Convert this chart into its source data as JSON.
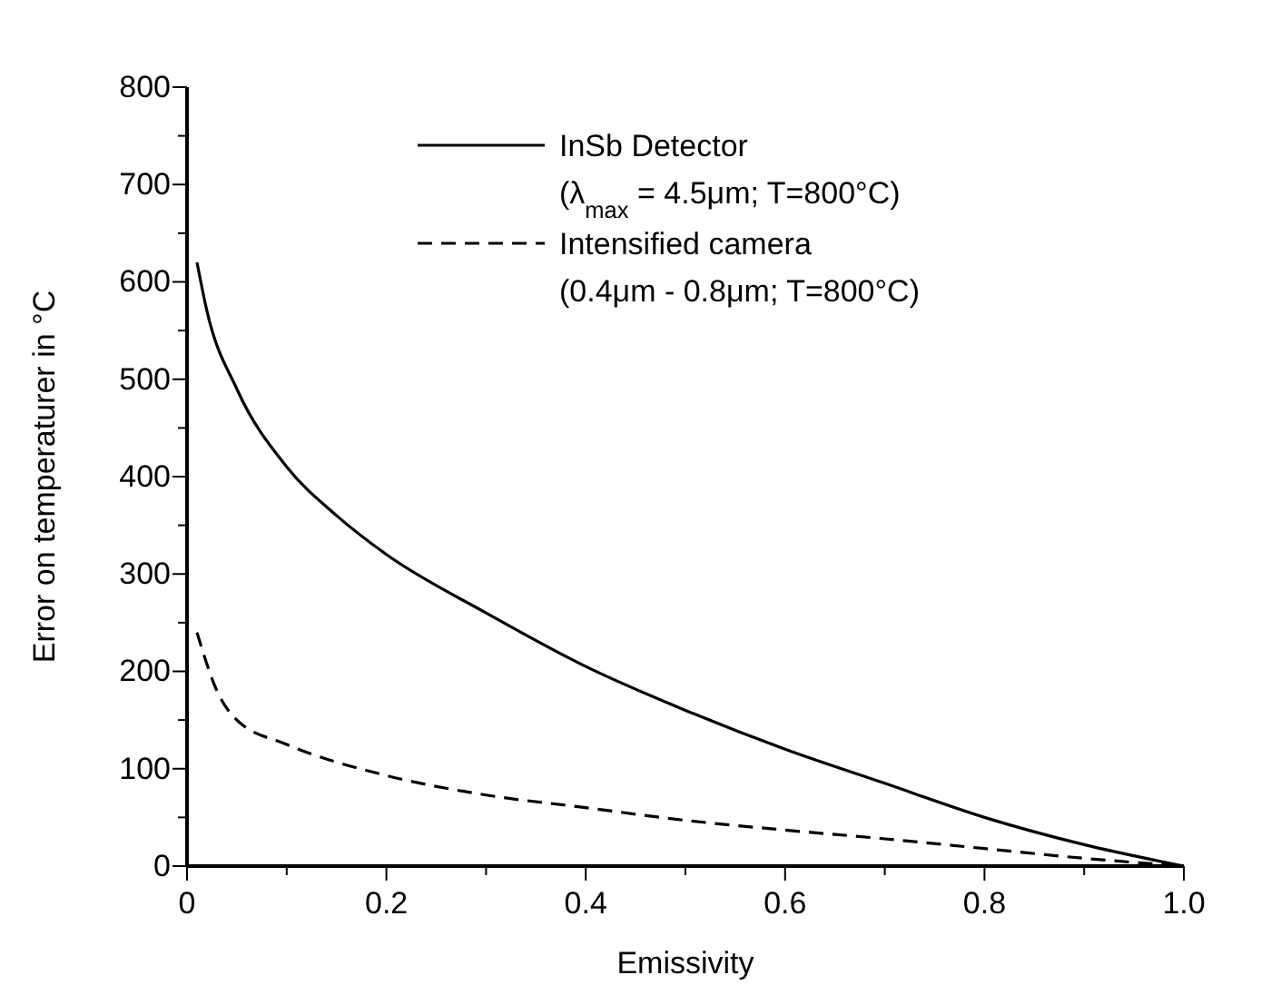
{
  "chart_data": {
    "type": "line",
    "xlabel": "Emissivity",
    "ylabel": "Error on temperaturer in °C",
    "xlim": [
      0,
      1
    ],
    "ylim": [
      0,
      800
    ],
    "xticks": [
      0,
      {
        "value": 0.1,
        "label": null
      },
      {
        "value": 0.2,
        "label": "0.2"
      },
      {
        "value": 0.3,
        "label": null
      },
      {
        "value": 0.4,
        "label": "0.4"
      },
      {
        "value": 0.5,
        "label": null
      },
      {
        "value": 0.6,
        "label": "0.6"
      },
      {
        "value": 0.7,
        "label": null
      },
      {
        "value": 0.8,
        "label": "0.8"
      },
      {
        "value": 0.9,
        "label": null
      },
      {
        "value": 1,
        "label": "1.0"
      }
    ],
    "yticks": [
      0,
      {
        "value": 50,
        "label": null
      },
      100,
      {
        "value": 150,
        "label": null
      },
      200,
      {
        "value": 250,
        "label": null
      },
      300,
      {
        "value": 350,
        "label": null
      },
      400,
      {
        "value": 450,
        "label": null
      },
      500,
      {
        "value": 550,
        "label": null
      },
      600,
      {
        "value": 650,
        "label": null
      },
      700,
      {
        "value": 750,
        "label": null
      },
      800
    ],
    "legend": "top right",
    "grid": false,
    "marker": "none",
    "series": [
      {
        "name": "InSb Detector\n(λ$_{max}$ = 4.5μm; T=800°C)",
        "color": "#000000",
        "line_style": "solid",
        "x": [
          0.01,
          0.02,
          0.05,
          0.1,
          0.15,
          0.2,
          0.3,
          0.4,
          0.5,
          0.6,
          0.7,
          0.8,
          0.9,
          1.0
        ],
        "values": [
          620,
          570,
          490,
          410,
          360,
          320,
          260,
          205,
          160,
          120,
          85,
          50,
          22,
          0
        ]
      },
      {
        "name": "Intensified camera\n(0.4μm - 0.8μm; T=800°C)",
        "color": "#000000",
        "line_style": "dashed",
        "x": [
          0.01,
          0.03,
          0.05,
          0.1,
          0.2,
          0.3,
          0.4,
          0.5,
          0.6,
          0.7,
          0.8,
          0.9,
          1.0
        ],
        "values": [
          240,
          180,
          150,
          125,
          93,
          73,
          60,
          47,
          37,
          28,
          18,
          8,
          0
        ]
      }
    ]
  }
}
